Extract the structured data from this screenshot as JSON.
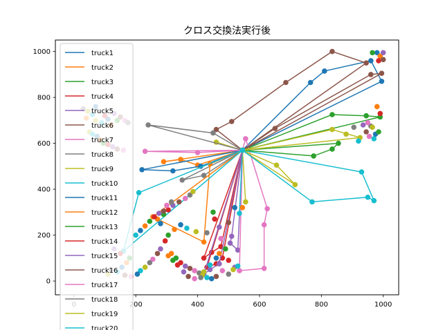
{
  "chart_data": {
    "type": "line",
    "title": "クロス交換法実行後",
    "xlabel": "",
    "ylabel": "",
    "xlim": [
      -60,
      1050
    ],
    "ylim": [
      -60,
      1050
    ],
    "xticks": [
      0,
      200,
      400,
      600,
      800,
      1000
    ],
    "yticks": [
      0,
      200,
      400,
      600,
      800,
      1000
    ],
    "depot": [
      545,
      570
    ],
    "grid": false,
    "legend_position": "upper-left",
    "series": [
      {
        "name": "truck1",
        "color": "#1f77b4",
        "points": [
          [
            545,
            570
          ],
          [
            765,
            865
          ],
          [
            810,
            915
          ],
          [
            960,
            960
          ],
          [
            995,
            870
          ],
          [
            545,
            570
          ]
        ]
      },
      {
        "name": "truck2",
        "color": "#ff7f0e",
        "points": [
          [
            545,
            570
          ],
          [
            400,
            505
          ],
          [
            345,
            530
          ],
          [
            290,
            520
          ],
          [
            545,
            570
          ]
        ]
      },
      {
        "name": "truck3",
        "color": "#2ca02c",
        "points": [
          [
            545,
            570
          ],
          [
            835,
            725
          ],
          [
            945,
            720
          ],
          [
            990,
            715
          ],
          [
            545,
            570
          ]
        ]
      },
      {
        "name": "truck4",
        "color": "#d62728",
        "points": [
          [
            545,
            570
          ],
          [
            475,
            150
          ],
          [
            445,
            125
          ],
          [
            420,
            100
          ],
          [
            545,
            570
          ]
        ]
      },
      {
        "name": "truck5",
        "color": "#9467bd",
        "points": [
          [
            545,
            570
          ],
          [
            510,
            195
          ],
          [
            505,
            165
          ],
          [
            530,
            135
          ],
          [
            545,
            570
          ]
        ]
      },
      {
        "name": "truck6",
        "color": "#8c564b",
        "points": [
          [
            545,
            570
          ],
          [
            460,
            660
          ],
          [
            510,
            695
          ],
          [
            685,
            865
          ],
          [
            835,
            1000
          ],
          [
            945,
            950
          ],
          [
            545,
            570
          ]
        ]
      },
      {
        "name": "truck7",
        "color": "#e377c2",
        "points": [
          [
            545,
            570
          ],
          [
            555,
            620
          ],
          [
            625,
            315
          ],
          [
            615,
            245
          ],
          [
            615,
            55
          ],
          [
            535,
            45
          ],
          [
            545,
            570
          ]
        ]
      },
      {
        "name": "truck8",
        "color": "#7f7f7f",
        "points": [
          [
            545,
            570
          ],
          [
            350,
            440
          ],
          [
            420,
            460
          ],
          [
            545,
            570
          ]
        ]
      },
      {
        "name": "truck9",
        "color": "#bcbd22",
        "points": [
          [
            545,
            570
          ],
          [
            460,
            605
          ],
          [
            545,
            570
          ],
          [
            555,
            345
          ],
          [
            545,
            570
          ],
          [
            655,
            505
          ],
          [
            715,
            420
          ],
          [
            545,
            570
          ]
        ]
      },
      {
        "name": "truck10",
        "color": "#17becf",
        "points": [
          [
            545,
            570
          ],
          [
            535,
            295
          ],
          [
            545,
            570
          ],
          [
            770,
            345
          ],
          [
            950,
            365
          ],
          [
            970,
            350
          ],
          [
            930,
            475
          ],
          [
            545,
            570
          ]
        ]
      },
      {
        "name": "truck11",
        "color": "#1f77b4",
        "points": [
          [
            545,
            570
          ],
          [
            410,
            500
          ],
          [
            320,
            480
          ],
          [
            220,
            485
          ],
          [
            545,
            570
          ]
        ]
      },
      {
        "name": "truck12",
        "color": "#ff7f0e",
        "points": [
          [
            545,
            570
          ],
          [
            440,
            510
          ],
          [
            420,
            170
          ],
          [
            255,
            280
          ],
          [
            545,
            570
          ]
        ]
      },
      {
        "name": "truck13",
        "color": "#2ca02c",
        "points": [
          [
            545,
            570
          ],
          [
            775,
            545
          ],
          [
            835,
            575
          ],
          [
            855,
            600
          ],
          [
            545,
            570
          ]
        ]
      },
      {
        "name": "truck14",
        "color": "#d62728",
        "points": [
          [
            545,
            570
          ],
          [
            480,
            100
          ],
          [
            460,
            75
          ],
          [
            430,
            60
          ],
          [
            545,
            570
          ]
        ]
      },
      {
        "name": "truck15",
        "color": "#9467bd",
        "points": [
          [
            545,
            570
          ],
          [
            470,
            75
          ],
          [
            440,
            50
          ],
          [
            420,
            30
          ],
          [
            545,
            570
          ]
        ]
      },
      {
        "name": "truck16",
        "color": "#8c564b",
        "points": [
          [
            545,
            570
          ],
          [
            650,
            665
          ],
          [
            960,
            900
          ],
          [
            995,
            905
          ],
          [
            545,
            570
          ]
        ]
      },
      {
        "name": "truck17",
        "color": "#e377c2",
        "points": [
          [
            545,
            570
          ],
          [
            400,
            560
          ],
          [
            230,
            565
          ],
          [
            545,
            570
          ]
        ]
      },
      {
        "name": "truck18",
        "color": "#7f7f7f",
        "points": [
          [
            545,
            570
          ],
          [
            450,
            645
          ],
          [
            240,
            680
          ],
          [
            545,
            570
          ]
        ]
      },
      {
        "name": "truck19",
        "color": "#bcbd22",
        "points": [
          [
            545,
            570
          ],
          [
            835,
            660
          ],
          [
            925,
            625
          ],
          [
            545,
            570
          ]
        ]
      },
      {
        "name": "truck20",
        "color": "#17becf",
        "points": [
          [
            545,
            570
          ],
          [
            210,
            385
          ],
          [
            160,
            130
          ],
          [
            545,
            570
          ]
        ]
      }
    ],
    "scatter_points": [
      [
        980,
        995
      ],
      [
        990,
        980
      ],
      [
        965,
        995
      ],
      [
        985,
        960
      ],
      [
        1000,
        995
      ],
      [
        1000,
        965
      ],
      [
        955,
        630
      ],
      [
        960,
        675
      ],
      [
        965,
        670
      ],
      [
        970,
        620
      ],
      [
        975,
        640
      ],
      [
        980,
        760
      ],
      [
        985,
        650
      ],
      [
        990,
        730
      ],
      [
        935,
        680
      ],
      [
        945,
        650
      ],
      [
        950,
        690
      ],
      [
        905,
        670
      ],
      [
        880,
        640
      ],
      [
        920,
        610
      ],
      [
        520,
        320
      ],
      [
        545,
        320
      ],
      [
        450,
        300
      ],
      [
        455,
        270
      ],
      [
        470,
        235
      ],
      [
        500,
        255
      ],
      [
        475,
        185
      ],
      [
        430,
        210
      ],
      [
        395,
        215
      ],
      [
        365,
        230
      ],
      [
        345,
        245
      ],
      [
        325,
        225
      ],
      [
        305,
        200
      ],
      [
        295,
        175
      ],
      [
        280,
        140
      ],
      [
        270,
        120
      ],
      [
        255,
        95
      ],
      [
        245,
        80
      ],
      [
        230,
        60
      ],
      [
        215,
        45
      ],
      [
        205,
        30
      ],
      [
        315,
        120
      ],
      [
        330,
        100
      ],
      [
        345,
        80
      ],
      [
        360,
        65
      ],
      [
        375,
        55
      ],
      [
        390,
        45
      ],
      [
        405,
        35
      ],
      [
        415,
        25
      ],
      [
        430,
        15
      ],
      [
        445,
        10
      ],
      [
        305,
        110
      ],
      [
        320,
        90
      ],
      [
        335,
        70
      ],
      [
        355,
        40
      ],
      [
        370,
        20
      ],
      [
        390,
        10
      ],
      [
        410,
        15
      ],
      [
        420,
        40
      ],
      [
        440,
        70
      ],
      [
        460,
        100
      ],
      [
        470,
        120
      ],
      [
        490,
        140
      ],
      [
        500,
        90
      ],
      [
        520,
        60
      ],
      [
        460,
        20
      ],
      [
        480,
        45
      ],
      [
        500,
        30
      ],
      [
        515,
        50
      ],
      [
        530,
        65
      ],
      [
        280,
        250
      ],
      [
        270,
        270
      ],
      [
        290,
        290
      ],
      [
        305,
        310
      ],
      [
        320,
        330
      ],
      [
        340,
        345
      ],
      [
        360,
        360
      ],
      [
        375,
        375
      ],
      [
        385,
        390
      ],
      [
        140,
        40
      ],
      [
        155,
        60
      ],
      [
        170,
        80
      ],
      [
        180,
        100
      ],
      [
        150,
        120
      ],
      [
        130,
        140
      ],
      [
        165,
        25
      ],
      [
        185,
        20
      ],
      [
        120,
        50
      ],
      [
        110,
        30
      ],
      [
        200,
        200
      ],
      [
        215,
        220
      ],
      [
        230,
        240
      ],
      [
        245,
        260
      ],
      [
        260,
        280
      ],
      [
        275,
        295
      ],
      [
        290,
        305
      ],
      [
        300,
        330
      ],
      [
        315,
        345
      ],
      [
        70,
        700
      ],
      [
        90,
        690
      ],
      [
        110,
        705
      ],
      [
        120,
        680
      ],
      [
        140,
        700
      ],
      [
        100,
        720
      ],
      [
        130,
        730
      ],
      [
        150,
        715
      ],
      [
        165,
        700
      ],
      [
        175,
        690
      ],
      [
        50,
        650
      ],
      [
        60,
        640
      ],
      [
        75,
        630
      ],
      [
        85,
        615
      ],
      [
        95,
        600
      ],
      [
        110,
        595
      ],
      [
        125,
        585
      ],
      [
        140,
        575
      ],
      [
        160,
        570
      ],
      [
        30,
        750
      ],
      [
        45,
        740
      ],
      [
        60,
        725
      ],
      [
        70,
        760
      ],
      [
        40,
        710
      ]
    ]
  }
}
